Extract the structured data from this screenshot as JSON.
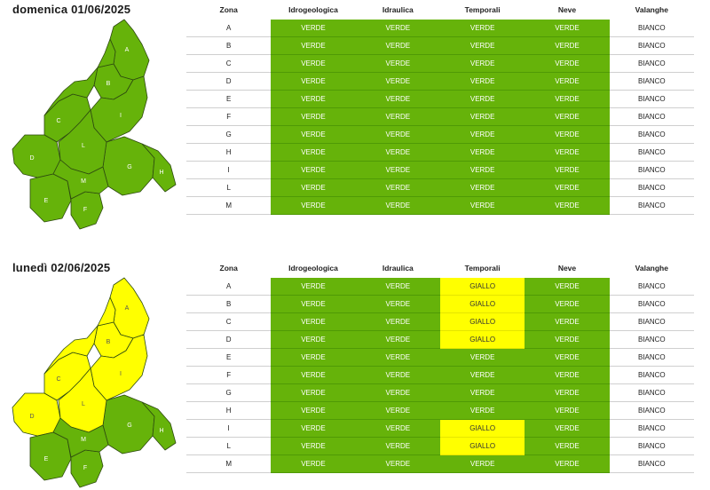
{
  "columns": [
    "Zona",
    "Idrogeologica",
    "Idraulica",
    "Temporali",
    "Neve",
    "Valanghe"
  ],
  "days": [
    {
      "title": "domenica 01/06/2025",
      "rows": [
        {
          "zona": "A",
          "idrogeologica": "VERDE",
          "idraulica": "VERDE",
          "temporali": "VERDE",
          "neve": "VERDE",
          "valanghe": "BIANCO"
        },
        {
          "zona": "B",
          "idrogeologica": "VERDE",
          "idraulica": "VERDE",
          "temporali": "VERDE",
          "neve": "VERDE",
          "valanghe": "BIANCO"
        },
        {
          "zona": "C",
          "idrogeologica": "VERDE",
          "idraulica": "VERDE",
          "temporali": "VERDE",
          "neve": "VERDE",
          "valanghe": "BIANCO"
        },
        {
          "zona": "D",
          "idrogeologica": "VERDE",
          "idraulica": "VERDE",
          "temporali": "VERDE",
          "neve": "VERDE",
          "valanghe": "BIANCO"
        },
        {
          "zona": "E",
          "idrogeologica": "VERDE",
          "idraulica": "VERDE",
          "temporali": "VERDE",
          "neve": "VERDE",
          "valanghe": "BIANCO"
        },
        {
          "zona": "F",
          "idrogeologica": "VERDE",
          "idraulica": "VERDE",
          "temporali": "VERDE",
          "neve": "VERDE",
          "valanghe": "BIANCO"
        },
        {
          "zona": "G",
          "idrogeologica": "VERDE",
          "idraulica": "VERDE",
          "temporali": "VERDE",
          "neve": "VERDE",
          "valanghe": "BIANCO"
        },
        {
          "zona": "H",
          "idrogeologica": "VERDE",
          "idraulica": "VERDE",
          "temporali": "VERDE",
          "neve": "VERDE",
          "valanghe": "BIANCO"
        },
        {
          "zona": "I",
          "idrogeologica": "VERDE",
          "idraulica": "VERDE",
          "temporali": "VERDE",
          "neve": "VERDE",
          "valanghe": "BIANCO"
        },
        {
          "zona": "L",
          "idrogeologica": "VERDE",
          "idraulica": "VERDE",
          "temporali": "VERDE",
          "neve": "VERDE",
          "valanghe": "BIANCO"
        },
        {
          "zona": "M",
          "idrogeologica": "VERDE",
          "idraulica": "VERDE",
          "temporali": "VERDE",
          "neve": "VERDE",
          "valanghe": "BIANCO"
        }
      ],
      "map_zone_colors": {
        "A": "VERDE",
        "B": "VERDE",
        "C": "VERDE",
        "D": "VERDE",
        "E": "VERDE",
        "F": "VERDE",
        "G": "VERDE",
        "H": "VERDE",
        "I": "VERDE",
        "L": "VERDE",
        "M": "VERDE"
      }
    },
    {
      "title": "lunedì 02/06/2025",
      "rows": [
        {
          "zona": "A",
          "idrogeologica": "VERDE",
          "idraulica": "VERDE",
          "temporali": "GIALLO",
          "neve": "VERDE",
          "valanghe": "BIANCO"
        },
        {
          "zona": "B",
          "idrogeologica": "VERDE",
          "idraulica": "VERDE",
          "temporali": "GIALLO",
          "neve": "VERDE",
          "valanghe": "BIANCO"
        },
        {
          "zona": "C",
          "idrogeologica": "VERDE",
          "idraulica": "VERDE",
          "temporali": "GIALLO",
          "neve": "VERDE",
          "valanghe": "BIANCO"
        },
        {
          "zona": "D",
          "idrogeologica": "VERDE",
          "idraulica": "VERDE",
          "temporali": "GIALLO",
          "neve": "VERDE",
          "valanghe": "BIANCO"
        },
        {
          "zona": "E",
          "idrogeologica": "VERDE",
          "idraulica": "VERDE",
          "temporali": "VERDE",
          "neve": "VERDE",
          "valanghe": "BIANCO"
        },
        {
          "zona": "F",
          "idrogeologica": "VERDE",
          "idraulica": "VERDE",
          "temporali": "VERDE",
          "neve": "VERDE",
          "valanghe": "BIANCO"
        },
        {
          "zona": "G",
          "idrogeologica": "VERDE",
          "idraulica": "VERDE",
          "temporali": "VERDE",
          "neve": "VERDE",
          "valanghe": "BIANCO"
        },
        {
          "zona": "H",
          "idrogeologica": "VERDE",
          "idraulica": "VERDE",
          "temporali": "VERDE",
          "neve": "VERDE",
          "valanghe": "BIANCO"
        },
        {
          "zona": "I",
          "idrogeologica": "VERDE",
          "idraulica": "VERDE",
          "temporali": "GIALLO",
          "neve": "VERDE",
          "valanghe": "BIANCO"
        },
        {
          "zona": "L",
          "idrogeologica": "VERDE",
          "idraulica": "VERDE",
          "temporali": "GIALLO",
          "neve": "VERDE",
          "valanghe": "BIANCO"
        },
        {
          "zona": "M",
          "idrogeologica": "VERDE",
          "idraulica": "VERDE",
          "temporali": "VERDE",
          "neve": "VERDE",
          "valanghe": "BIANCO"
        }
      ],
      "map_zone_colors": {
        "A": "GIALLO",
        "B": "GIALLO",
        "C": "GIALLO",
        "D": "GIALLO",
        "E": "VERDE",
        "F": "VERDE",
        "G": "VERDE",
        "H": "VERDE",
        "I": "GIALLO",
        "L": "GIALLO",
        "M": "VERDE"
      }
    }
  ],
  "colors": {
    "VERDE": "#66b30a",
    "GIALLO": "#ffff00",
    "BIANCO": "#ffffff",
    "border": "#2d4a10"
  }
}
